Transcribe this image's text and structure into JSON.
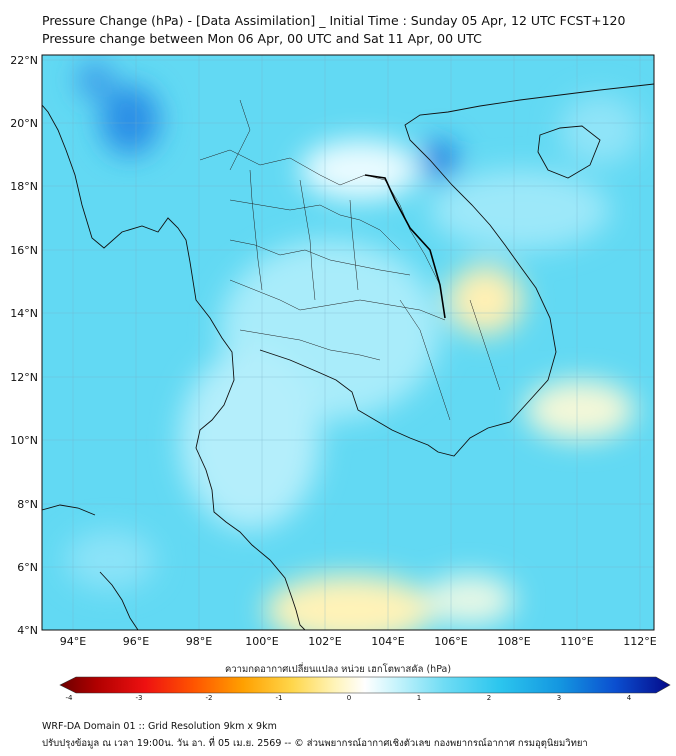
{
  "header": {
    "title": "Pressure Change (hPa) - [Data Assimilation] _ Initial Time : Sunday 05 Apr, 12 UTC FCST+120",
    "subtitle": "Pressure change between Mon 06 Apr, 00 UTC and Sat 11 Apr, 00 UTC"
  },
  "map": {
    "lat_labels": [
      "22°N",
      "20°N",
      "18°N",
      "16°N",
      "14°N",
      "12°N",
      "10°N",
      "8°N",
      "6°N",
      "4°N"
    ],
    "lon_labels": [
      "94°E",
      "96°E",
      "98°E",
      "100°E",
      "102°E",
      "104°E",
      "106°E",
      "108°E",
      "110°E",
      "112°E"
    ],
    "colors": {
      "ocean_base": "#5fd8f2",
      "light_cyan": "#b9f0fb",
      "deep_blue": "#1d7fe0",
      "pale_yellow": "#fff2b0",
      "border": "#111111"
    }
  },
  "colorbar": {
    "title": "ความกดอากาศเปลี่ยนแปลง หน่วย เฮกโตพาสคัล (hPa)",
    "ticks": [
      "-4",
      "-3",
      "-2",
      "-1",
      "0",
      "1",
      "2",
      "3",
      "4"
    ]
  },
  "footer": {
    "line1": "WRF-DA Domain 01 :: Grid Resolution 9km x 9km",
    "line2": "ปรับปรุงข้อมูล ณ เวลา 19:00น. วัน อา. ที่ 05 เม.ย. 2569 -- © ส่วนพยากรณ์อากาศเชิงตัวเลข กองพยากรณ์อากาศ กรมอุตุนิยมวิทยา"
  }
}
